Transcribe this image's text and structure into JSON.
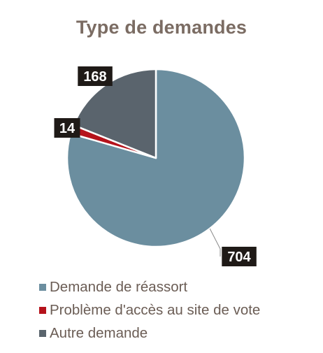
{
  "chart_data": {
    "type": "pie",
    "title": "Type de demandes",
    "slices": [
      {
        "label": "Demande de réassort",
        "value": 704,
        "color": "#6b8e9f"
      },
      {
        "label": "Problème d'accès au site de vote",
        "value": 14,
        "color": "#b5121b"
      },
      {
        "label": "Autre demande",
        "value": 168,
        "color": "#5a646d"
      }
    ],
    "legend_position": "bottom"
  }
}
